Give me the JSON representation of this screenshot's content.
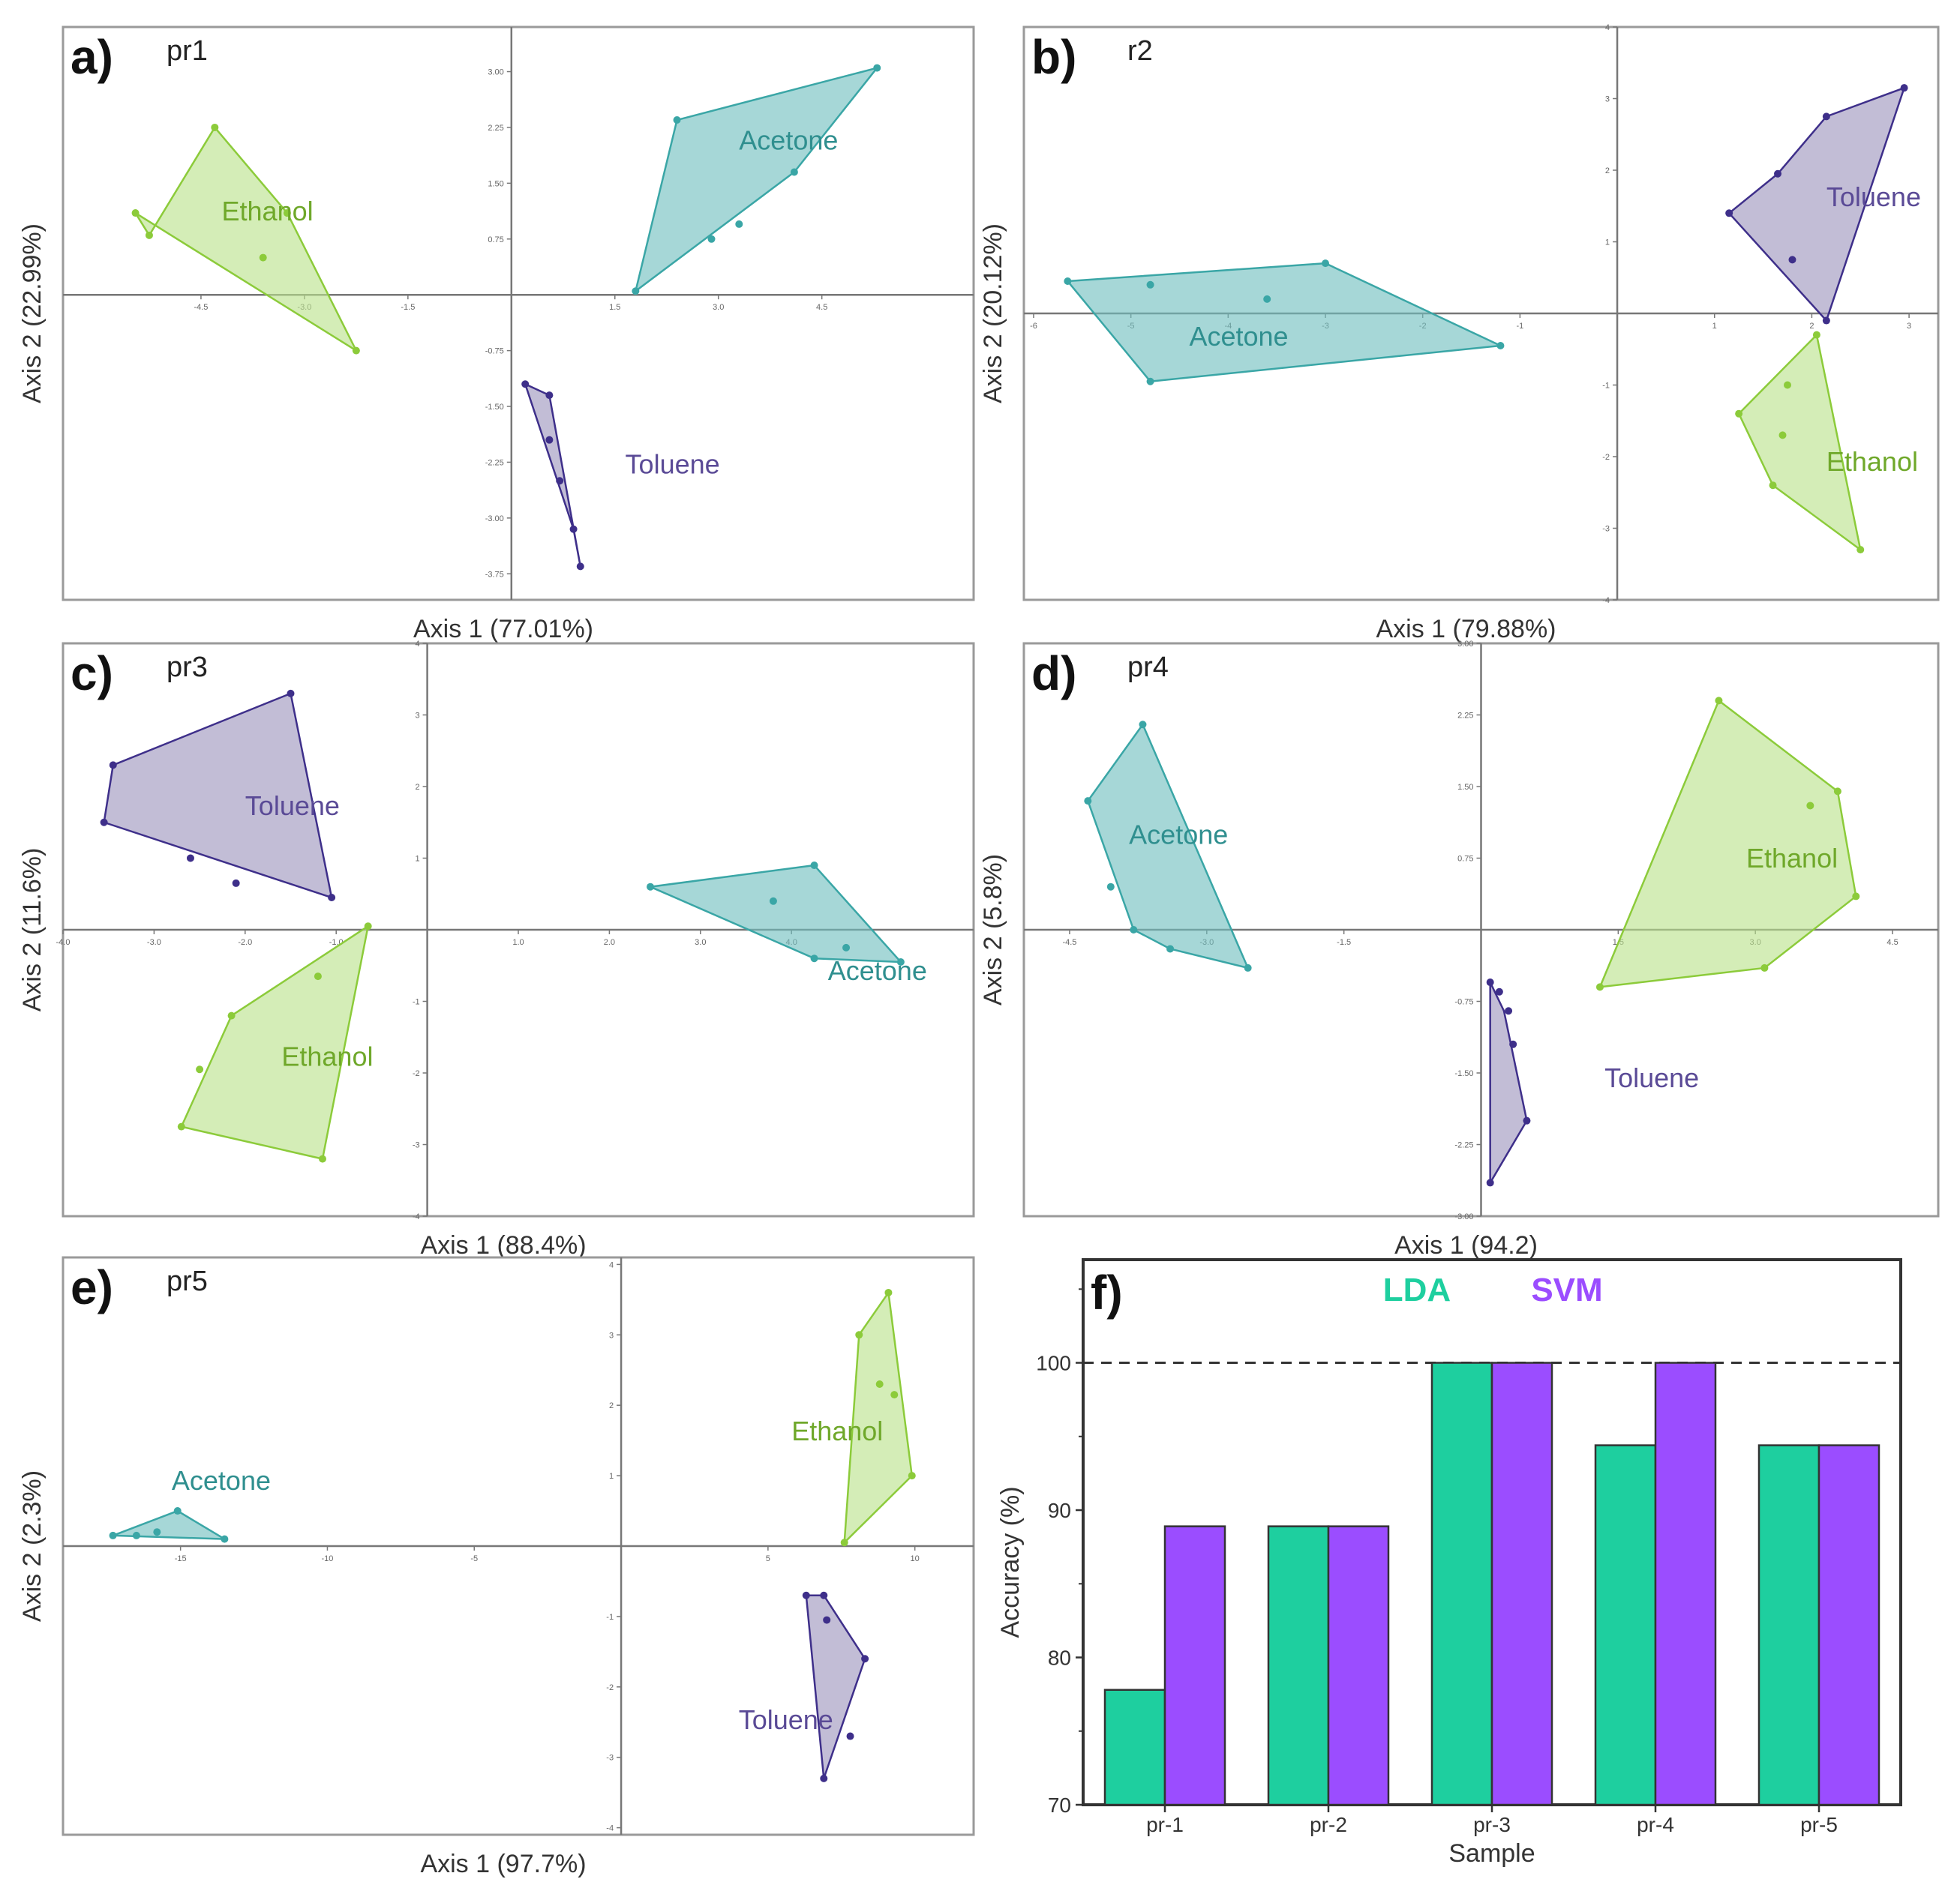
{
  "colors": {
    "acetone": "#3aa6a6",
    "acetone_fill": "#6fbebe",
    "ethanol": "#8ccb3a",
    "ethanol_fill": "#b9e28a",
    "toluene": "#3e2f8a",
    "toluene_fill": "#9d95bd",
    "toluene_label": "#5a4a96",
    "lda": "#1ecf9f",
    "svm": "#9b4dff",
    "axis": "#777777",
    "frame": "#9a9a9a"
  },
  "chart_data": [
    {
      "id": "a",
      "type": "scatter",
      "panel_letter": "a)",
      "title": "pr1",
      "xlabel": "Axis 1  (77.01%)",
      "ylabel": "Axis 2  (22.99%)",
      "xlim": [
        -6.5,
        6.7
      ],
      "ylim": [
        -4.1,
        3.6
      ],
      "xticks": [
        "-4.5",
        "-3.0",
        "-1.5",
        "1.5",
        "3.0",
        "4.5"
      ],
      "xtick_values": [
        -4.5,
        -3.0,
        -1.5,
        1.5,
        3.0,
        4.5
      ],
      "yticks": [
        "3.00",
        "2.25",
        "1.50",
        "0.75",
        "-0.75",
        "-1.50",
        "-2.25",
        "-3.00",
        "-3.75"
      ],
      "ytick_values": [
        3.0,
        2.25,
        1.5,
        0.75,
        -0.75,
        -1.5,
        -2.25,
        -3.0,
        -3.75
      ],
      "groups": [
        {
          "name": "Ethanol",
          "color_key": "ethanol",
          "label_at": [
            -4.2,
            1.0
          ],
          "hull": [
            [
              -4.3,
              2.25
            ],
            [
              -3.25,
              1.1
            ],
            [
              -2.25,
              -0.75
            ],
            [
              -5.45,
              1.1
            ],
            [
              -5.25,
              0.8
            ]
          ],
          "points": [
            [
              -5.45,
              1.1
            ],
            [
              -5.25,
              0.8
            ],
            [
              -4.3,
              2.25
            ],
            [
              -3.25,
              1.1
            ],
            [
              -3.6,
              0.5
            ],
            [
              -2.25,
              -0.75
            ]
          ]
        },
        {
          "name": "Acetone",
          "color_key": "acetone",
          "label_at": [
            3.3,
            1.95
          ],
          "hull": [
            [
              1.8,
              0.05
            ],
            [
              2.4,
              2.35
            ],
            [
              5.3,
              3.05
            ],
            [
              4.1,
              1.65
            ]
          ],
          "points": [
            [
              1.8,
              0.05
            ],
            [
              2.9,
              0.75
            ],
            [
              3.3,
              0.95
            ],
            [
              4.1,
              1.65
            ],
            [
              2.4,
              2.35
            ],
            [
              5.3,
              3.05
            ]
          ]
        },
        {
          "name": "Toluene",
          "color_key": "toluene",
          "label_at": [
            1.65,
            -2.4
          ],
          "hull": [
            [
              0.2,
              -1.2
            ],
            [
              0.55,
              -1.35
            ],
            [
              1.0,
              -3.65
            ],
            [
              0.9,
              -3.15
            ]
          ],
          "points": [
            [
              0.2,
              -1.2
            ],
            [
              0.55,
              -1.35
            ],
            [
              0.55,
              -1.95
            ],
            [
              0.7,
              -2.5
            ],
            [
              0.9,
              -3.15
            ],
            [
              1.0,
              -3.65
            ]
          ]
        }
      ]
    },
    {
      "id": "b",
      "type": "scatter",
      "panel_letter": "b)",
      "title": "r2",
      "xlabel": "Axis 1  (79.88%)",
      "ylabel": "Axis 2  (20.12%)",
      "xlim": [
        -6.1,
        3.3
      ],
      "ylim": [
        -4.0,
        4.0
      ],
      "xticks": [
        "-6",
        "-5",
        "-4",
        "-3",
        "-2",
        "-1",
        "1",
        "2",
        "3"
      ],
      "xtick_values": [
        -6,
        -5,
        -4,
        -3,
        -2,
        -1,
        1,
        2,
        3
      ],
      "yticks": [
        "4",
        "3",
        "2",
        "1",
        "-1",
        "-2",
        "-3",
        "-4"
      ],
      "ytick_values": [
        4,
        3,
        2,
        1,
        -1,
        -2,
        -3,
        -4
      ],
      "groups": [
        {
          "name": "Acetone",
          "color_key": "acetone",
          "label_at": [
            -4.4,
            -0.45
          ],
          "hull": [
            [
              -5.65,
              0.45
            ],
            [
              -3.0,
              0.7
            ],
            [
              -1.2,
              -0.45
            ],
            [
              -4.8,
              -0.95
            ]
          ],
          "points": [
            [
              -5.65,
              0.45
            ],
            [
              -4.8,
              0.4
            ],
            [
              -3.6,
              0.2
            ],
            [
              -3.0,
              0.7
            ],
            [
              -1.2,
              -0.45
            ],
            [
              -4.8,
              -0.95
            ]
          ]
        },
        {
          "name": "Toluene",
          "color_key": "toluene",
          "label_at": [
            2.15,
            1.5
          ],
          "hull": [
            [
              1.15,
              1.4
            ],
            [
              1.65,
              1.95
            ],
            [
              2.15,
              2.75
            ],
            [
              2.95,
              3.15
            ],
            [
              2.15,
              -0.1
            ]
          ],
          "points": [
            [
              1.15,
              1.4
            ],
            [
              1.65,
              1.95
            ],
            [
              1.8,
              0.75
            ],
            [
              2.15,
              2.75
            ],
            [
              2.95,
              3.15
            ],
            [
              2.15,
              -0.1
            ]
          ]
        },
        {
          "name": "Ethanol",
          "color_key": "ethanol",
          "label_at": [
            2.15,
            -2.2
          ],
          "hull": [
            [
              2.05,
              -0.3
            ],
            [
              2.5,
              -3.3
            ],
            [
              1.6,
              -2.4
            ],
            [
              1.25,
              -1.4
            ]
          ],
          "points": [
            [
              2.05,
              -0.3
            ],
            [
              1.75,
              -1.0
            ],
            [
              1.7,
              -1.7
            ],
            [
              1.25,
              -1.4
            ],
            [
              1.6,
              -2.4
            ],
            [
              2.5,
              -3.3
            ]
          ]
        }
      ]
    },
    {
      "id": "c",
      "type": "scatter",
      "panel_letter": "c)",
      "title": "pr3",
      "xlabel": "Axis 1  (88.4%)",
      "ylabel": "Axis 2  (11.6%)",
      "xlim": [
        -4.0,
        6.0
      ],
      "ylim": [
        -4.0,
        4.0
      ],
      "xticks": [
        "-4.0",
        "-3.0",
        "-2.0",
        "-1.0",
        "1.0",
        "2.0",
        "3.0",
        "4.0"
      ],
      "xtick_values": [
        -4.0,
        -3.0,
        -2.0,
        -1.0,
        1.0,
        2.0,
        3.0,
        4.0
      ],
      "yticks": [
        "4",
        "3",
        "2",
        "1",
        "-1",
        "-2",
        "-3",
        "-4"
      ],
      "ytick_values": [
        4,
        3,
        2,
        1,
        -1,
        -2,
        -3,
        -4
      ],
      "groups": [
        {
          "name": "Toluene",
          "color_key": "toluene",
          "label_at": [
            -2.0,
            1.6
          ],
          "hull": [
            [
              -3.45,
              2.3
            ],
            [
              -1.5,
              3.3
            ],
            [
              -1.05,
              0.45
            ],
            [
              -3.55,
              1.5
            ]
          ],
          "points": [
            [
              -3.55,
              1.5
            ],
            [
              -3.45,
              2.3
            ],
            [
              -2.6,
              1.0
            ],
            [
              -2.1,
              0.65
            ],
            [
              -1.5,
              3.3
            ],
            [
              -1.05,
              0.45
            ]
          ]
        },
        {
          "name": "Ethanol",
          "color_key": "ethanol",
          "label_at": [
            -1.6,
            -1.9
          ],
          "hull": [
            [
              -0.65,
              0.05
            ],
            [
              -1.15,
              -3.2
            ],
            [
              -2.7,
              -2.75
            ],
            [
              -2.15,
              -1.2
            ]
          ],
          "points": [
            [
              -0.65,
              0.05
            ],
            [
              -1.2,
              -0.65
            ],
            [
              -2.15,
              -1.2
            ],
            [
              -2.5,
              -1.95
            ],
            [
              -2.7,
              -2.75
            ],
            [
              -1.15,
              -3.2
            ]
          ]
        },
        {
          "name": "Acetone",
          "color_key": "acetone",
          "label_at": [
            4.4,
            -0.7
          ],
          "hull": [
            [
              2.45,
              0.6
            ],
            [
              4.25,
              0.9
            ],
            [
              5.2,
              -0.45
            ],
            [
              4.25,
              -0.4
            ]
          ],
          "points": [
            [
              2.45,
              0.6
            ],
            [
              4.25,
              0.9
            ],
            [
              3.8,
              0.4
            ],
            [
              4.6,
              -0.25
            ],
            [
              4.25,
              -0.4
            ],
            [
              5.2,
              -0.45
            ]
          ]
        }
      ]
    },
    {
      "id": "d",
      "type": "scatter",
      "panel_letter": "d)",
      "title": "pr4",
      "xlabel": "Axis 1  (94.2)",
      "ylabel": "Axis 2  (5.8%)",
      "xlim": [
        -5.0,
        5.0
      ],
      "ylim": [
        -3.0,
        3.0
      ],
      "xticks": [
        "-4.5",
        "-3.0",
        "-1.5",
        "1.5",
        "3.0",
        "4.5"
      ],
      "xtick_values": [
        -4.5,
        -3.0,
        -1.5,
        1.5,
        3.0,
        4.5
      ],
      "yticks": [
        "3.00",
        "2.25",
        "1.50",
        "0.75",
        "-0.75",
        "-1.50",
        "-2.25",
        "-3.00"
      ],
      "ytick_values": [
        3.0,
        2.25,
        1.5,
        0.75,
        -0.75,
        -1.5,
        -2.25,
        -3.0
      ],
      "groups": [
        {
          "name": "Acetone",
          "color_key": "acetone",
          "label_at": [
            -3.85,
            0.9
          ],
          "hull": [
            [
              -4.3,
              1.35
            ],
            [
              -3.7,
              2.15
            ],
            [
              -2.55,
              -0.4
            ],
            [
              -3.4,
              -0.2
            ],
            [
              -3.8,
              0
            ]
          ],
          "points": [
            [
              -4.3,
              1.35
            ],
            [
              -4.05,
              0.45
            ],
            [
              -3.8,
              0
            ],
            [
              -3.4,
              -0.2
            ],
            [
              -3.7,
              2.15
            ],
            [
              -2.55,
              -0.4
            ]
          ]
        },
        {
          "name": "Toluene",
          "color_key": "toluene",
          "label_at": [
            1.35,
            -1.65
          ],
          "hull": [
            [
              0.1,
              -0.55
            ],
            [
              0.25,
              -0.85
            ],
            [
              0.5,
              -2.0
            ],
            [
              0.1,
              -2.65
            ]
          ],
          "points": [
            [
              0.1,
              -0.55
            ],
            [
              0.2,
              -0.65
            ],
            [
              0.3,
              -0.85
            ],
            [
              0.35,
              -1.2
            ],
            [
              0.5,
              -2.0
            ],
            [
              0.1,
              -2.65
            ]
          ]
        },
        {
          "name": "Ethanol",
          "color_key": "ethanol",
          "label_at": [
            2.9,
            0.65
          ],
          "hull": [
            [
              2.6,
              2.4
            ],
            [
              3.9,
              1.45
            ],
            [
              4.1,
              0.35
            ],
            [
              3.1,
              -0.4
            ],
            [
              1.3,
              -0.6
            ]
          ],
          "points": [
            [
              2.6,
              2.4
            ],
            [
              3.6,
              1.3
            ],
            [
              3.9,
              1.45
            ],
            [
              4.1,
              0.35
            ],
            [
              3.1,
              -0.4
            ],
            [
              1.3,
              -0.6
            ]
          ]
        }
      ]
    },
    {
      "id": "e",
      "type": "scatter",
      "panel_letter": "e)",
      "title": "pr5",
      "xlabel": "Axis 1  (97.7%)",
      "ylabel": "Axis 2  (2.3%)",
      "xlim": [
        -19.0,
        12.0
      ],
      "ylim": [
        -4.1,
        4.1
      ],
      "xticks": [
        "-15",
        "-10",
        "-5",
        "5",
        "10"
      ],
      "xtick_values": [
        -15,
        -10,
        -5,
        5,
        10
      ],
      "yticks": [
        "4",
        "3",
        "2",
        "1",
        "-1",
        "-2",
        "-3",
        "-4"
      ],
      "ytick_values": [
        4,
        3,
        2,
        1,
        -1,
        -2,
        -3,
        -4
      ],
      "groups": [
        {
          "name": "Acetone",
          "color_key": "acetone",
          "label_at": [
            -15.3,
            0.8
          ],
          "hull": [
            [
              -17.3,
              0.15
            ],
            [
              -15.1,
              0.5
            ],
            [
              -13.5,
              0.1
            ]
          ],
          "points": [
            [
              -17.3,
              0.15
            ],
            [
              -16.5,
              0.15
            ],
            [
              -15.8,
              0.2
            ],
            [
              -15.1,
              0.5
            ],
            [
              -13.5,
              0.1
            ]
          ]
        },
        {
          "name": "Ethanol",
          "color_key": "ethanol",
          "label_at": [
            5.8,
            1.5
          ],
          "hull": [
            [
              8.1,
              3.0
            ],
            [
              9.1,
              3.6
            ],
            [
              9.9,
              1.0
            ],
            [
              7.6,
              0.05
            ]
          ],
          "points": [
            [
              8.1,
              3.0
            ],
            [
              9.1,
              3.6
            ],
            [
              8.8,
              2.3
            ],
            [
              9.3,
              2.15
            ],
            [
              9.9,
              1.0
            ],
            [
              7.6,
              0.05
            ]
          ]
        },
        {
          "name": "Toluene",
          "color_key": "toluene",
          "label_at": [
            4.0,
            -2.6
          ],
          "hull": [
            [
              6.3,
              -0.7
            ],
            [
              6.9,
              -0.7
            ],
            [
              8.3,
              -1.6
            ],
            [
              6.9,
              -3.3
            ]
          ],
          "points": [
            [
              6.3,
              -0.7
            ],
            [
              6.9,
              -0.7
            ],
            [
              7.0,
              -1.05
            ],
            [
              8.3,
              -1.6
            ],
            [
              7.8,
              -2.7
            ],
            [
              6.9,
              -3.3
            ]
          ]
        }
      ]
    },
    {
      "id": "f",
      "type": "bar",
      "panel_letter": "f)",
      "xlabel": "Sample",
      "ylabel": "Accuracy (%)",
      "categories": [
        "pr-1",
        "pr-2",
        "pr-3",
        "pr-4",
        "pr-5"
      ],
      "series": [
        {
          "name": "LDA",
          "color_key": "lda",
          "values": [
            77.8,
            88.9,
            100,
            94.4,
            94.4
          ]
        },
        {
          "name": "SVM",
          "color_key": "svm",
          "values": [
            88.9,
            88.9,
            100,
            100,
            94.4
          ]
        }
      ],
      "ylim": [
        70,
        107
      ],
      "yticks": [
        "70",
        "80",
        "90",
        "100"
      ],
      "ytick_values": [
        70,
        80,
        90,
        100
      ],
      "reference_line": 100,
      "legend": "top-center"
    }
  ]
}
